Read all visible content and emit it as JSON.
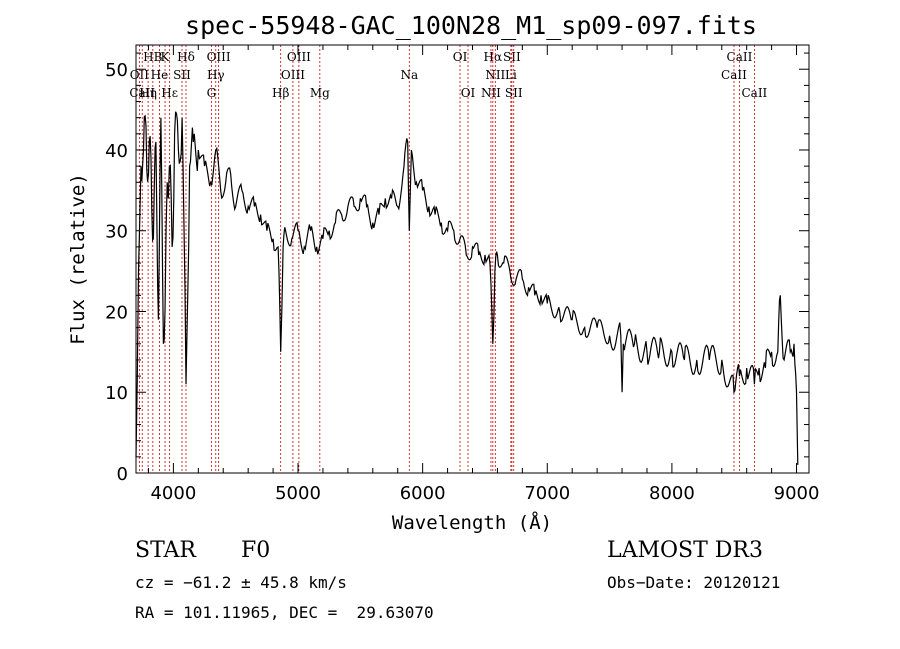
{
  "chart_data": {
    "type": "line",
    "title": "spec-55948-GAC_100N28_M1_sp09-097.fits",
    "xlabel": "Wavelength (Å)",
    "ylabel": "Flux (relative)",
    "xlim": [
      3700,
      9100
    ],
    "ylim": [
      0,
      53
    ],
    "x_ticks": [
      4000,
      5000,
      6000,
      7000,
      8000,
      9000
    ],
    "y_ticks": [
      0,
      10,
      20,
      30,
      40,
      50
    ],
    "series": [
      {
        "name": "spectrum",
        "x": [
          3700,
          3710,
          3720,
          3730,
          3740,
          3760,
          3780,
          3800,
          3820,
          3840,
          3860,
          3880,
          3900,
          3920,
          3933,
          3950,
          3968,
          3990,
          4010,
          4040,
          4070,
          4101,
          4130,
          4160,
          4200,
          4250,
          4300,
          4340,
          4380,
          4420,
          4460,
          4500,
          4550,
          4600,
          4650,
          4700,
          4750,
          4800,
          4840,
          4861,
          4880,
          4900,
          4950,
          5000,
          5050,
          5100,
          5150,
          5200,
          5250,
          5300,
          5350,
          5400,
          5450,
          5500,
          5550,
          5600,
          5650,
          5700,
          5750,
          5800,
          5850,
          5880,
          5893,
          5910,
          5950,
          6000,
          6050,
          6100,
          6150,
          6200,
          6250,
          6300,
          6350,
          6400,
          6450,
          6500,
          6540,
          6563,
          6580,
          6600,
          6650,
          6700,
          6750,
          6800,
          6850,
          6900,
          6950,
          7000,
          7100,
          7200,
          7300,
          7400,
          7500,
          7590,
          7600,
          7610,
          7700,
          7800,
          7900,
          8000,
          8100,
          8200,
          8300,
          8400,
          8498,
          8542,
          8600,
          8662,
          8700,
          8750,
          8800,
          8850,
          8870,
          8900,
          8950,
          8980,
          9000,
          9010
        ],
        "values": [
          2,
          11,
          25,
          31,
          38,
          40,
          43,
          37,
          39,
          29,
          41,
          19,
          44,
          16,
          20,
          36,
          38,
          28,
          42,
          40,
          44,
          11,
          38,
          41,
          40,
          38,
          36,
          40,
          35,
          36,
          37,
          33,
          35,
          33,
          33,
          32,
          30,
          29,
          28,
          15,
          28,
          30,
          29,
          30,
          28,
          30,
          28,
          29,
          30,
          31,
          32,
          33,
          33,
          34,
          33,
          31,
          32,
          34,
          34,
          33,
          38,
          41,
          30,
          40,
          36,
          35,
          33,
          32,
          31,
          30,
          30,
          29,
          27,
          28,
          27,
          27,
          26,
          16,
          25,
          27,
          26,
          25,
          24,
          24,
          23,
          22,
          22,
          21,
          20,
          19,
          18,
          18,
          17,
          17,
          10,
          16,
          16,
          15,
          15,
          15,
          14,
          14,
          14,
          14,
          10,
          12,
          13,
          11,
          13,
          13,
          15,
          15,
          22,
          14,
          15,
          16,
          10,
          1
        ]
      }
    ],
    "lines": [
      {
        "label": "HB",
        "x": 3835,
        "row": 0
      },
      {
        "label": "K",
        "x": 3933,
        "row": 0
      },
      {
        "label": "Hδ",
        "x": 4101,
        "row": 0
      },
      {
        "label": "OIII",
        "x": 4363,
        "row": 0
      },
      {
        "label": "OIII",
        "x": 5007,
        "row": 0
      },
      {
        "label": "OI",
        "x": 6300,
        "row": 0
      },
      {
        "label": "Hα",
        "x": 6563,
        "row": 0
      },
      {
        "label": "SII",
        "x": 6716,
        "row": 0
      },
      {
        "label": "CaII",
        "x": 8542,
        "row": 0
      },
      {
        "label": "OII",
        "x": 3727,
        "row": 1
      },
      {
        "label": "He",
        "x": 3888,
        "row": 1
      },
      {
        "label": "SII",
        "x": 4069,
        "row": 1
      },
      {
        "label": "Hγ",
        "x": 4340,
        "row": 1
      },
      {
        "label": "OIII",
        "x": 4959,
        "row": 1
      },
      {
        "label": "Na",
        "x": 5893,
        "row": 1
      },
      {
        "label": "NII",
        "x": 6583,
        "row": 1
      },
      {
        "label": "Li",
        "x": 6708,
        "row": 1
      },
      {
        "label": "CaII",
        "x": 8498,
        "row": 1
      },
      {
        "label": "CaII",
        "x": 3750,
        "row": 2
      },
      {
        "label": "Hη",
        "x": 3797,
        "row": 2
      },
      {
        "label": "Hε",
        "x": 3970,
        "row": 2
      },
      {
        "label": "G",
        "x": 4305,
        "row": 2
      },
      {
        "label": "Hβ",
        "x": 4861,
        "row": 2
      },
      {
        "label": "Mg",
        "x": 5175,
        "row": 2
      },
      {
        "label": "OI",
        "x": 6364,
        "row": 2
      },
      {
        "label": "NII",
        "x": 6548,
        "row": 2
      },
      {
        "label": "SII",
        "x": 6731,
        "row": 2
      },
      {
        "label": "CaII",
        "x": 8662,
        "row": 2
      }
    ],
    "colors": {
      "spectrum": "#000000",
      "line_markers": "#cc0000"
    }
  },
  "info": {
    "object_type": "STAR",
    "subclass": "F0",
    "survey": "LAMOST DR3",
    "cz": "cz = −61.2 ± 45.8 km/s",
    "obs_date": "Obs−Date: 20120121",
    "coords": "RA = 101.11965, DEC =  29.63070"
  }
}
